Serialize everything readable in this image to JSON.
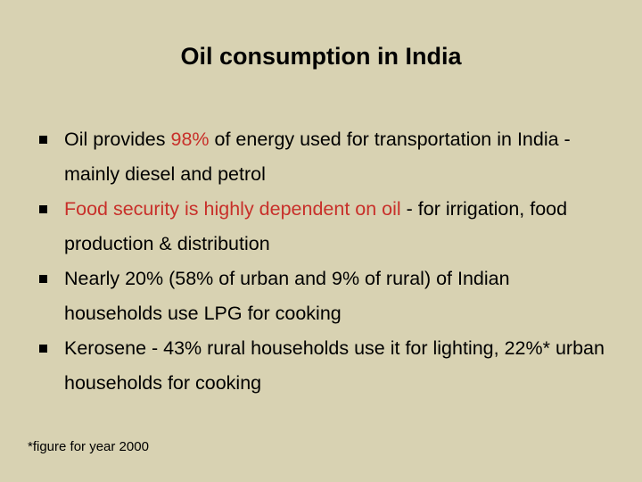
{
  "title": "Oil consumption in India",
  "bullets": [
    {
      "parts": [
        {
          "text": "Oil provides "
        },
        {
          "text": "98%",
          "color": "#c8302a"
        },
        {
          "text": " of energy used for transportation in India - mainly diesel and petrol"
        }
      ]
    },
    {
      "parts": [
        {
          "text": "Food security is highly dependent on oil",
          "color": "#c8302a"
        },
        {
          "text": " - for irrigation, food production & distribution"
        }
      ]
    },
    {
      "parts": [
        {
          "text": "Nearly 20% (58% of urban and 9% of rural) of Indian households use LPG for cooking"
        }
      ]
    },
    {
      "parts": [
        {
          "text": "Kerosene - 43% rural households use it for lighting, 22%* urban households for cooking"
        }
      ]
    }
  ],
  "footnote": "*figure for year 2000"
}
